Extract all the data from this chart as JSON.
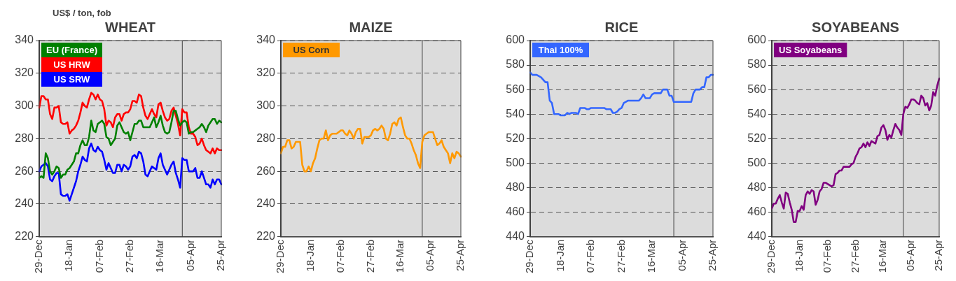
{
  "chart_data": [
    {
      "type": "line",
      "title": "WHEAT",
      "ylabel": "US$ / ton, fob",
      "categories": [
        "29-Dec",
        null,
        null,
        null,
        null,
        null,
        null,
        null,
        null,
        null,
        null,
        null,
        null,
        null,
        "18-Jan",
        null,
        null,
        null,
        null,
        null,
        null,
        null,
        null,
        null,
        null,
        null,
        null,
        null,
        "07-Feb",
        null,
        null,
        null,
        null,
        null,
        null,
        null,
        null,
        null,
        null,
        null,
        null,
        null,
        "27-Feb",
        null,
        null,
        null,
        null,
        null,
        null,
        null,
        null,
        null,
        null,
        null,
        null,
        null,
        "16-Mar",
        null,
        null,
        null,
        null,
        null,
        null,
        null,
        null,
        null,
        null,
        null,
        null,
        null,
        "05-Apr",
        null,
        null,
        null,
        null,
        null,
        null,
        null,
        null,
        null,
        null,
        null,
        null,
        null,
        "25-Apr"
      ],
      "ylim": [
        220,
        340
      ],
      "yticks": [
        220,
        240,
        260,
        280,
        300,
        320,
        340
      ],
      "grid": "y",
      "legend": "top left",
      "series": [
        {
          "name": "EU (France)",
          "color": "#008000",
          "values": [
            256,
            257,
            256,
            271,
            268,
            260,
            258,
            260,
            263,
            262,
            256,
            258,
            258,
            261,
            262,
            264,
            266,
            271,
            271,
            276,
            279,
            276,
            276,
            281,
            291,
            285,
            284,
            289,
            290,
            291,
            289,
            281,
            280,
            276,
            278,
            280,
            288,
            290,
            287,
            284,
            283,
            284,
            279,
            284,
            289,
            289,
            291,
            291,
            287,
            287,
            287,
            287,
            290,
            293,
            287,
            290,
            294,
            288,
            284,
            283,
            284,
            290,
            297,
            297,
            292,
            288,
            290,
            291,
            290,
            283,
            284,
            284,
            285,
            286,
            287,
            289,
            287,
            284,
            288,
            290,
            292,
            292,
            289,
            291,
            290
          ]
        },
        {
          "name": "US HRW",
          "color": "#ff0000",
          "values": [
            299,
            306,
            306,
            304,
            304,
            295,
            292,
            299,
            299,
            300,
            290,
            289,
            289,
            290,
            283,
            285,
            286,
            288,
            291,
            296,
            302,
            300,
            299,
            304,
            308,
            307,
            304,
            307,
            304,
            303,
            298,
            288,
            291,
            290,
            287,
            293,
            295,
            295,
            291,
            295,
            296,
            296,
            298,
            303,
            303,
            302,
            307,
            306,
            299,
            294,
            292,
            295,
            298,
            295,
            293,
            301,
            302,
            297,
            293,
            291,
            292,
            297,
            299,
            294,
            289,
            282,
            298,
            296,
            296,
            287,
            283,
            283,
            281,
            276,
            277,
            280,
            276,
            273,
            272,
            271,
            274,
            271,
            274,
            273,
            273
          ]
        },
        {
          "name": "US SRW",
          "color": "#0000ff",
          "values": [
            260,
            263,
            264,
            265,
            263,
            255,
            254,
            257,
            259,
            259,
            246,
            245,
            245,
            246,
            242,
            246,
            250,
            254,
            260,
            264,
            269,
            267,
            266,
            274,
            277,
            273,
            272,
            275,
            273,
            272,
            267,
            261,
            265,
            262,
            259,
            259,
            264,
            264,
            260,
            264,
            263,
            261,
            263,
            269,
            270,
            268,
            272,
            271,
            266,
            258,
            257,
            260,
            263,
            262,
            261,
            268,
            271,
            264,
            261,
            258,
            261,
            264,
            266,
            259,
            255,
            250,
            268,
            267,
            267,
            260,
            260,
            260,
            262,
            256,
            256,
            260,
            256,
            252,
            252,
            250,
            255,
            252,
            255,
            255,
            252
          ]
        }
      ]
    },
    {
      "type": "line",
      "title": "MAIZE",
      "categories": [
        "29-Dec",
        null,
        null,
        null,
        null,
        null,
        null,
        null,
        null,
        null,
        null,
        null,
        null,
        null,
        "18-Jan",
        null,
        null,
        null,
        null,
        null,
        null,
        null,
        null,
        null,
        null,
        null,
        null,
        null,
        "07-Feb",
        null,
        null,
        null,
        null,
        null,
        null,
        null,
        null,
        null,
        null,
        null,
        null,
        null,
        "27-Feb",
        null,
        null,
        null,
        null,
        null,
        null,
        null,
        null,
        null,
        null,
        null,
        null,
        null,
        "16-Mar",
        null,
        null,
        null,
        null,
        null,
        null,
        null,
        null,
        null,
        null,
        null,
        null,
        null,
        "05-Apr",
        null,
        null,
        null,
        null,
        null,
        null,
        null,
        null,
        null,
        null,
        null,
        null,
        null,
        "25-Apr"
      ],
      "ylim": [
        220,
        340
      ],
      "yticks": [
        220,
        240,
        260,
        280,
        300,
        320,
        340
      ],
      "grid": "y",
      "legend": "top left",
      "series": [
        {
          "name": "US Corn",
          "color": "#ff9900",
          "values": [
            271,
            275,
            275,
            279,
            279,
            274,
            275,
            278,
            278,
            278,
            264,
            260,
            260,
            263,
            260,
            265,
            268,
            274,
            279,
            280,
            280,
            285,
            279,
            282,
            283,
            283,
            283,
            284,
            285,
            285,
            283,
            282,
            285,
            283,
            280,
            284,
            286,
            286,
            277,
            281,
            281,
            281,
            282,
            285,
            286,
            285,
            286,
            288,
            286,
            280,
            279,
            283,
            289,
            290,
            288,
            292,
            293,
            287,
            282,
            280,
            280,
            277,
            273,
            270,
            265,
            262,
            278,
            282,
            283,
            284,
            284,
            284,
            280,
            276,
            277,
            279,
            275,
            273,
            271,
            265,
            271,
            268,
            272,
            271,
            269
          ]
        }
      ]
    },
    {
      "type": "line",
      "title": "RICE",
      "categories": [
        "29-Dec",
        null,
        null,
        null,
        null,
        null,
        null,
        null,
        null,
        null,
        null,
        null,
        null,
        null,
        "18-Jan",
        null,
        null,
        null,
        null,
        null,
        null,
        null,
        null,
        null,
        null,
        null,
        null,
        null,
        "07-Feb",
        null,
        null,
        null,
        null,
        null,
        null,
        null,
        null,
        null,
        null,
        null,
        null,
        null,
        "27-Feb",
        null,
        null,
        null,
        null,
        null,
        null,
        null,
        null,
        null,
        null,
        null,
        null,
        null,
        "16-Mar",
        null,
        null,
        null,
        null,
        null,
        null,
        null,
        null,
        null,
        null,
        null,
        null,
        null,
        "05-Apr",
        null,
        null,
        null,
        null,
        null,
        null,
        null,
        null,
        null,
        null,
        null,
        null,
        null,
        "25-Apr"
      ],
      "ylim": [
        440,
        600
      ],
      "yticks": [
        440,
        460,
        480,
        500,
        520,
        540,
        560,
        580,
        600
      ],
      "grid": "y",
      "legend": "top left",
      "series": [
        {
          "name": "Thai 100%",
          "color": "#3366ff",
          "values": [
            574,
            572,
            572,
            572,
            571,
            570,
            568,
            566,
            566,
            551,
            549,
            540,
            540,
            540,
            539,
            539,
            539,
            541,
            540,
            541,
            541,
            541,
            540,
            545,
            545,
            545,
            544,
            544,
            545,
            545,
            545,
            545,
            545,
            545,
            545,
            544,
            544,
            544,
            541,
            541,
            542,
            544,
            545,
            549,
            550,
            551,
            551,
            551,
            551,
            551,
            551,
            553,
            556,
            553,
            553,
            553,
            556,
            557,
            557,
            557,
            557,
            560,
            560,
            560,
            555,
            555,
            550,
            550,
            550,
            550,
            550,
            550,
            550,
            550,
            550,
            557,
            560,
            560,
            560,
            562,
            562,
            570,
            570,
            572,
            572
          ]
        }
      ]
    },
    {
      "type": "line",
      "title": "SOYABEANS",
      "categories": [
        "29-Dec",
        null,
        null,
        null,
        null,
        null,
        null,
        null,
        null,
        null,
        null,
        null,
        null,
        null,
        "18-Jan",
        null,
        null,
        null,
        null,
        null,
        null,
        null,
        null,
        null,
        null,
        null,
        null,
        null,
        "07-Feb",
        null,
        null,
        null,
        null,
        null,
        null,
        null,
        null,
        null,
        null,
        null,
        null,
        null,
        "27-Feb",
        null,
        null,
        null,
        null,
        null,
        null,
        null,
        null,
        null,
        null,
        null,
        null,
        null,
        "16-Mar",
        null,
        null,
        null,
        null,
        null,
        null,
        null,
        null,
        null,
        null,
        null,
        null,
        null,
        "05-Apr",
        null,
        null,
        null,
        null,
        null,
        null,
        null,
        null,
        null,
        null,
        null,
        null,
        null,
        "25-Apr"
      ],
      "ylim": [
        440,
        600
      ],
      "yticks": [
        440,
        460,
        480,
        500,
        520,
        540,
        560,
        580,
        600
      ],
      "grid": "y",
      "legend": "top left",
      "series": [
        {
          "name": "US Soyabeans",
          "color": "#800080",
          "values": [
            463,
            467,
            467,
            471,
            474,
            468,
            463,
            476,
            475,
            468,
            462,
            452,
            452,
            461,
            461,
            465,
            462,
            474,
            477,
            475,
            478,
            477,
            466,
            470,
            477,
            479,
            484,
            484,
            483,
            482,
            481,
            482,
            491,
            492,
            494,
            494,
            497,
            497,
            497,
            497,
            499,
            500,
            505,
            508,
            512,
            513,
            516,
            513,
            517,
            514,
            518,
            517,
            516,
            522,
            523,
            529,
            531,
            527,
            519,
            523,
            521,
            527,
            532,
            529,
            527,
            523,
            540,
            546,
            545,
            548,
            552,
            552,
            551,
            549,
            548,
            555,
            553,
            547,
            549,
            543,
            547,
            558,
            555,
            563,
            569
          ]
        }
      ]
    }
  ]
}
